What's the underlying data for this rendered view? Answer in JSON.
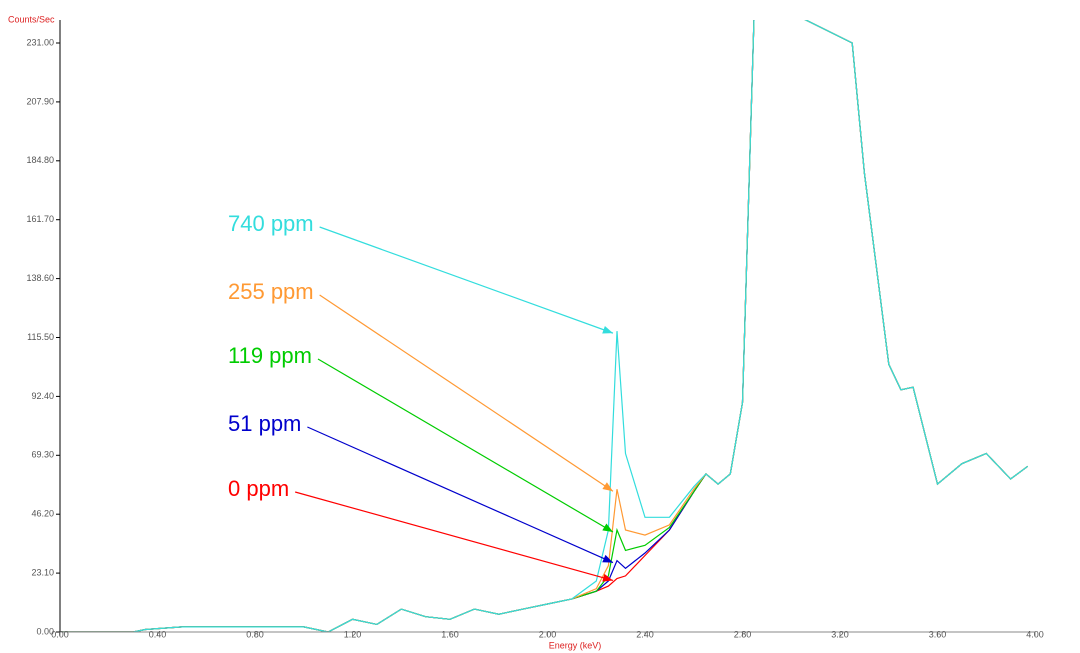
{
  "chart_data": {
    "type": "line",
    "y_label": "Counts/Sec",
    "x_label": "Energy (keV)",
    "xlim": [
      0,
      4
    ],
    "xticks": [
      {
        "value": 0,
        "label": "0.00"
      },
      {
        "value": 0.4,
        "label": "0.40"
      },
      {
        "value": 0.8,
        "label": "0.80"
      },
      {
        "value": 1.2,
        "label": "1.20"
      },
      {
        "value": 1.6,
        "label": "1.60"
      },
      {
        "value": 2,
        "label": "2.00"
      },
      {
        "value": 2.4,
        "label": "2.40"
      },
      {
        "value": 2.8,
        "label": "2.80"
      },
      {
        "value": 3.2,
        "label": "3.20"
      },
      {
        "value": 3.6,
        "label": "3.60"
      },
      {
        "value": 4,
        "label": "4.00"
      }
    ],
    "ylim": [
      0,
      231
    ],
    "yticks": [
      {
        "value": 0,
        "label": "0.00"
      },
      {
        "value": 23.1,
        "label": "23.10"
      },
      {
        "value": 46.2,
        "label": "46.20"
      },
      {
        "value": 69.3,
        "label": "69.30"
      },
      {
        "value": 92.4,
        "label": "92.40"
      },
      {
        "value": 115.5,
        "label": "115.50"
      },
      {
        "value": 138.6,
        "label": "138.60"
      },
      {
        "value": 161.7,
        "label": "161.70"
      },
      {
        "value": 184.8,
        "label": "184.80"
      },
      {
        "value": 207.9,
        "label": "207.90"
      },
      {
        "value": 231,
        "label": "231.00"
      }
    ],
    "x": [
      0,
      0.3,
      0.35,
      0.5,
      0.8,
      1.0,
      1.1,
      1.2,
      1.3,
      1.4,
      1.5,
      1.6,
      1.7,
      1.8,
      1.9,
      2.0,
      2.1,
      2.2,
      2.25,
      2.285,
      2.32,
      2.4,
      2.5,
      2.6,
      2.65,
      2.7,
      2.75,
      2.8,
      2.85,
      3.25,
      3.3,
      3.4,
      3.45,
      3.5,
      3.6,
      3.7,
      3.8,
      3.9,
      3.97
    ],
    "series": [
      {
        "color": "#ff0000",
        "values": [
          0,
          0,
          1,
          2,
          2,
          2,
          0,
          5,
          3,
          9,
          6,
          5,
          9,
          7,
          9,
          11,
          13,
          16,
          18,
          21,
          22,
          30,
          40,
          55,
          62,
          58,
          62,
          90,
          250,
          231,
          180,
          105,
          95,
          96,
          58,
          66,
          70,
          60,
          65
        ]
      },
      {
        "color": "#0000cc",
        "values": [
          0,
          0,
          1,
          2,
          2,
          2,
          0,
          5,
          3,
          9,
          6,
          5,
          9,
          7,
          9,
          11,
          13,
          16,
          20,
          28,
          25,
          31,
          40,
          55,
          62,
          58,
          62,
          90,
          250,
          231,
          180,
          105,
          95,
          96,
          58,
          66,
          70,
          60,
          65
        ]
      },
      {
        "color": "#00cc00",
        "values": [
          0,
          0,
          1,
          2,
          2,
          2,
          0,
          5,
          3,
          9,
          6,
          5,
          9,
          7,
          9,
          11,
          13,
          16,
          22,
          40,
          32,
          34,
          41,
          55,
          62,
          58,
          62,
          90,
          250,
          231,
          180,
          105,
          95,
          96,
          58,
          66,
          70,
          60,
          65
        ]
      },
      {
        "color": "#ff9933",
        "values": [
          0,
          0,
          1,
          2,
          2,
          2,
          0,
          5,
          3,
          9,
          6,
          5,
          9,
          7,
          9,
          11,
          13,
          17,
          26,
          56,
          40,
          38,
          42,
          56,
          62,
          58,
          62,
          90,
          250,
          231,
          180,
          105,
          95,
          96,
          58,
          66,
          70,
          60,
          65
        ]
      },
      {
        "color": "#33dddd",
        "values": [
          0,
          0,
          1,
          2,
          2,
          2,
          0,
          5,
          3,
          9,
          6,
          5,
          9,
          7,
          9,
          11,
          13,
          20,
          40,
          118,
          70,
          45,
          45,
          57,
          62,
          58,
          62,
          90,
          250,
          231,
          180,
          105,
          95,
          96,
          58,
          66,
          70,
          60,
          65
        ]
      }
    ],
    "annotations": [
      {
        "text": "740 ppm",
        "color": "#33dddd"
      },
      {
        "text": "255 ppm",
        "color": "#ff9933"
      },
      {
        "text": "119 ppm",
        "color": "#00cc00"
      },
      {
        "text": "51 ppm",
        "color": "#0000cc"
      },
      {
        "text": "0 ppm",
        "color": "#ff0000"
      }
    ]
  }
}
